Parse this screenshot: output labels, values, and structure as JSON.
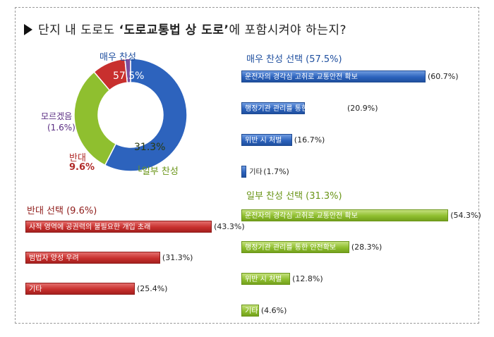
{
  "title": {
    "prefix": "단지 내 도로도 ",
    "emphasis": "‘도로교통법 상 도로’",
    "suffix": "에 포함시켜야 하는지?"
  },
  "colors": {
    "blue": "#2d63bd",
    "red": "#c8302e",
    "green": "#8fbf2f",
    "purple": "#7a4fa0",
    "blue_text": "#1f4f9f",
    "red_text": "#b02a28",
    "green_text": "#6a9518",
    "purple_text": "#5a2d82"
  },
  "chart_data": [
    {
      "type": "pie",
      "variant": "donut",
      "slices": [
        {
          "label": "매우 찬성",
          "value": 57.5,
          "display": "57.5%",
          "color": "#2d63bd"
        },
        {
          "label": "일부 찬성",
          "value": 31.3,
          "display": "31.3%",
          "color": "#8fbf2f"
        },
        {
          "label": "반대",
          "value": 9.6,
          "display": "9.6%",
          "color": "#c8302e"
        },
        {
          "label": "모르겠음",
          "value": 1.6,
          "display": "(1.6%)",
          "color": "#7a4fa0"
        }
      ]
    },
    {
      "type": "bar",
      "orientation": "horizontal",
      "title": "매우 찬성 선택 (57.5%)",
      "color": "#2d63bd",
      "categories": [
        "운전자의 경각심 고취로 교통안전 확보",
        "행정기관 관리를 통한 안전확보",
        "위반 시 처벌",
        "기타"
      ],
      "values": [
        60.7,
        20.9,
        16.7,
        1.7
      ],
      "value_labels": [
        "(60.7%)",
        "(20.9%)",
        "(16.7%)",
        "(1.7%)"
      ]
    },
    {
      "type": "bar",
      "orientation": "horizontal",
      "title": "일부 찬성 선택 (31.3%)",
      "color": "#8fbf2f",
      "categories": [
        "운전자의 경각심 고취로 교통안전 확보",
        "행정기관 관리를 통한 안전확보",
        "위반 시 처벌",
        "기타"
      ],
      "values": [
        54.3,
        28.3,
        12.8,
        4.6
      ],
      "value_labels": [
        "(54.3%)",
        "(28.3%)",
        "(12.8%)",
        "(4.6%)"
      ]
    },
    {
      "type": "bar",
      "orientation": "horizontal",
      "title": "반대 선택 (9.6%)",
      "color": "#c8302e",
      "categories": [
        "사적 영역에 공권력의 불필요한 개입 초래",
        "범법자 양성 우려",
        "기타"
      ],
      "values": [
        43.3,
        31.3,
        25.4
      ],
      "value_labels": [
        "(43.3%)",
        "(31.3%)",
        "(25.4%)"
      ]
    }
  ]
}
